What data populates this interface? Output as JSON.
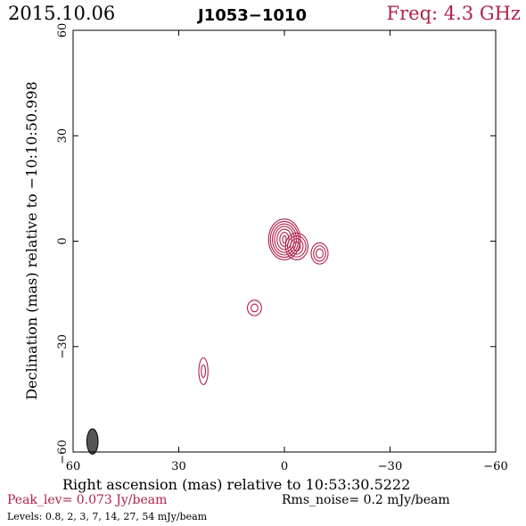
{
  "header": {
    "date": "2015.10.06",
    "source": "J1053−1010",
    "freq": "Freq: 4.3 GHz"
  },
  "footer": {
    "peak": "Peak_lev=  0.073 Jy/beam",
    "rms": "Rms_noise=   0.2 mJy/beam",
    "levels": "Levels: 0.8,   2,   3,   7,  14,  27,  54 mJy/beam"
  },
  "colors": {
    "contour": "#b0204a",
    "beam": "#555555",
    "axes": "#000000"
  },
  "chart_data": {
    "type": "contour",
    "xlabel": "Right ascension (mas) relative to 10:53:30.5222",
    "ylabel": "Declination (mas) relative to −10:10:50.998",
    "xlim": [
      60,
      -60
    ],
    "ylim": [
      -60,
      60
    ],
    "x_ticks": [
      60,
      30,
      0,
      -30,
      -60
    ],
    "y_ticks": [
      60,
      30,
      0,
      -30,
      -60
    ],
    "x_tick_labels": [
      "60",
      "30",
      "0",
      "−30",
      "−60"
    ],
    "y_tick_labels": [
      "60",
      "30",
      "0",
      "−30",
      "−60"
    ],
    "levels_mJy": [
      0.8,
      2,
      3,
      7,
      14,
      27,
      54
    ],
    "beam": {
      "x": 54.5,
      "y": -57,
      "major": 3.6,
      "minor": 1.6
    },
    "components": [
      {
        "name": "core",
        "x": 0.0,
        "y": 0.5,
        "rings": [
          [
            4.5,
            5.8
          ],
          [
            4.0,
            5.1
          ],
          [
            3.4,
            4.4
          ],
          [
            2.8,
            3.7
          ],
          [
            2.1,
            2.9
          ],
          [
            1.3,
            2.0
          ],
          [
            0.5,
            1.1
          ]
        ]
      },
      {
        "name": "jet-1",
        "x": -3.5,
        "y": -1.5,
        "rings": [
          [
            3.2,
            3.8
          ],
          [
            2.6,
            3.0
          ],
          [
            1.8,
            2.2
          ],
          [
            1.0,
            1.3
          ]
        ]
      },
      {
        "name": "jet-2",
        "x": -10.0,
        "y": -3.5,
        "rings": [
          [
            2.4,
            3.0
          ],
          [
            1.7,
            2.2
          ],
          [
            1.0,
            1.3
          ]
        ]
      },
      {
        "name": "knot-1",
        "x": 8.5,
        "y": -19.0,
        "rings": [
          [
            2.0,
            2.2
          ],
          [
            1.0,
            1.1
          ]
        ]
      },
      {
        "name": "knot-2",
        "x": 23.0,
        "y": -37.0,
        "rings": [
          [
            1.3,
            3.8
          ],
          [
            0.6,
            1.8
          ]
        ]
      }
    ]
  }
}
